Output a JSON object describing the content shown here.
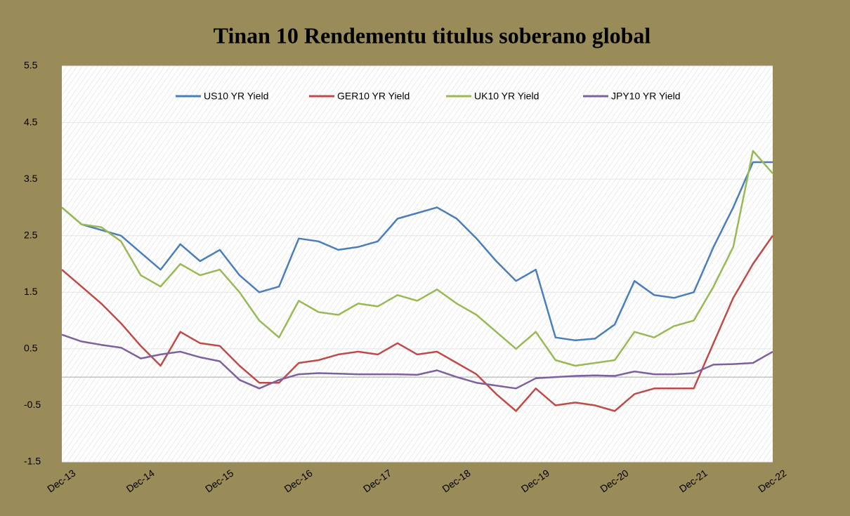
{
  "chart_data": {
    "type": "line",
    "title": "Tinan 10 Rendementu titulus soberano global",
    "categories": [
      "Dec-13",
      null,
      null,
      null,
      "Dec-14",
      null,
      null,
      null,
      "Dec-15",
      null,
      null,
      null,
      "Dec-16",
      null,
      null,
      null,
      "Dec-17",
      null,
      null,
      null,
      "Dec-18",
      null,
      null,
      null,
      "Dec-19",
      null,
      null,
      null,
      "Dec-20",
      null,
      null,
      null,
      "Dec-21",
      null,
      null,
      null,
      "Dec-22"
    ],
    "series": [
      {
        "name": "US10 YR Yield",
        "color": "#4a7ebb",
        "values": [
          3.0,
          2.7,
          2.6,
          2.5,
          2.2,
          1.9,
          2.35,
          2.05,
          2.25,
          1.8,
          1.5,
          1.6,
          2.45,
          2.4,
          2.25,
          2.3,
          2.4,
          2.8,
          2.9,
          3.0,
          2.8,
          2.45,
          2.05,
          1.7,
          1.9,
          0.7,
          0.65,
          0.68,
          0.93,
          1.7,
          1.45,
          1.4,
          1.5,
          2.3,
          3.0,
          3.8,
          3.8
        ]
      },
      {
        "name": "GER10 YR Yield",
        "color": "#be4b48",
        "values": [
          1.9,
          1.6,
          1.3,
          0.95,
          0.55,
          0.2,
          0.8,
          0.6,
          0.55,
          0.2,
          -0.1,
          -0.1,
          0.25,
          0.3,
          0.4,
          0.45,
          0.4,
          0.6,
          0.4,
          0.45,
          0.25,
          0.05,
          -0.3,
          -0.6,
          -0.2,
          -0.5,
          -0.45,
          -0.5,
          -0.6,
          -0.3,
          -0.2,
          -0.2,
          -0.2,
          0.6,
          1.4,
          2.0,
          2.5
        ]
      },
      {
        "name": "UK10 YR Yield",
        "color": "#98b954",
        "values": [
          3.0,
          2.7,
          2.65,
          2.4,
          1.8,
          1.6,
          2.0,
          1.8,
          1.9,
          1.5,
          1.0,
          0.7,
          1.35,
          1.15,
          1.1,
          1.3,
          1.25,
          1.45,
          1.35,
          1.55,
          1.3,
          1.1,
          0.8,
          0.5,
          0.8,
          0.3,
          0.2,
          0.25,
          0.3,
          0.8,
          0.7,
          0.9,
          1.0,
          1.6,
          2.3,
          4.0,
          3.6
        ]
      },
      {
        "name": "JPY10 YR Yield",
        "color": "#7d60a0",
        "values": [
          0.75,
          0.63,
          0.57,
          0.52,
          0.33,
          0.4,
          0.45,
          0.35,
          0.28,
          -0.05,
          -0.2,
          -0.05,
          0.05,
          0.07,
          0.06,
          0.05,
          0.05,
          0.05,
          0.04,
          0.12,
          0.0,
          -0.1,
          -0.15,
          -0.2,
          -0.02,
          0.0,
          0.02,
          0.03,
          0.02,
          0.1,
          0.05,
          0.05,
          0.07,
          0.22,
          0.23,
          0.25,
          0.45
        ]
      }
    ],
    "ylim": [
      -1.5,
      5.5
    ],
    "yticks": [
      -1.5,
      -0.5,
      0.5,
      1.5,
      2.5,
      3.5,
      4.5,
      5.5
    ],
    "grid": true,
    "legend": "top"
  }
}
